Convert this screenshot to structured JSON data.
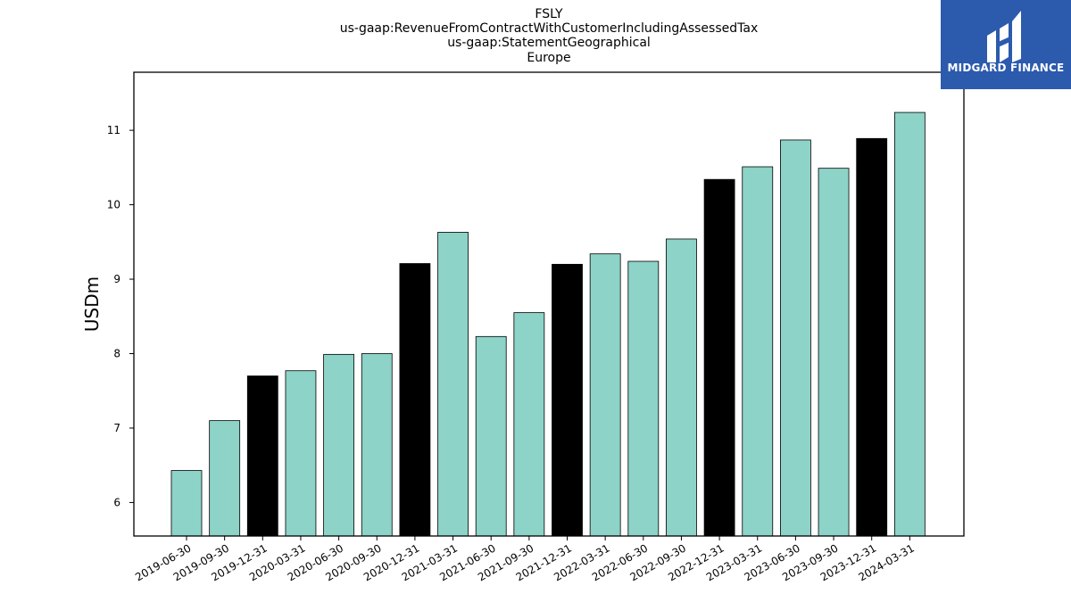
{
  "chart_data": {
    "type": "bar",
    "title": [
      "FSLY",
      "us-gaap:RevenueFromContractWithCustomerIncludingAssessedTax",
      "us-gaap:StatementGeographical",
      "Europe"
    ],
    "ylabel": "USDm",
    "xlabel": "",
    "ylim": [
      5.55,
      11.78
    ],
    "yticks": [
      6,
      7,
      8,
      9,
      10,
      11
    ],
    "grid": false,
    "categories": [
      "2019-06-30",
      "2019-09-30",
      "2019-12-31",
      "2020-03-31",
      "2020-06-30",
      "2020-09-30",
      "2020-12-31",
      "2021-03-31",
      "2021-06-30",
      "2021-09-30",
      "2021-12-31",
      "2022-03-31",
      "2022-06-30",
      "2022-09-30",
      "2022-12-31",
      "2023-03-31",
      "2023-06-30",
      "2023-09-30",
      "2023-12-31",
      "2024-03-31"
    ],
    "values": [
      6.43,
      7.1,
      7.7,
      7.77,
      7.99,
      8.0,
      9.21,
      9.63,
      8.23,
      8.55,
      9.2,
      9.34,
      9.24,
      9.54,
      10.34,
      10.51,
      10.87,
      10.49,
      10.89,
      11.24
    ],
    "highlight": [
      false,
      false,
      true,
      false,
      false,
      false,
      true,
      false,
      false,
      false,
      true,
      false,
      false,
      false,
      true,
      false,
      false,
      false,
      true,
      false
    ],
    "colors": {
      "normal": "#8dd3c7",
      "highlight": "#000000",
      "edge": "#000000"
    }
  },
  "logo": {
    "name": "midgard-finance-logo",
    "text": "MIDGARD FINANCE",
    "background": "#2c5aad"
  }
}
